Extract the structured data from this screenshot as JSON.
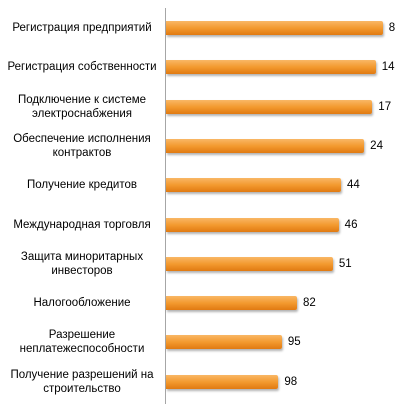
{
  "chart_data": {
    "type": "bar",
    "orientation": "horizontal",
    "categories": [
      "Регистрация предприятий",
      "Регистрация собственности",
      "Подключение к системе электроснабжения",
      "Обеспечение исполнения контрактов",
      "Получение кредитов",
      "Международная торговля",
      "Защита миноритарных инвесторов",
      "Налогообложение",
      "Разрешение неплатежеспособности",
      "Получение разрешений на строительство"
    ],
    "values": [
      8,
      14,
      17,
      24,
      44,
      46,
      51,
      82,
      95,
      98
    ],
    "color": "#f39a2f",
    "xlim": [
      195,
      0
    ]
  }
}
